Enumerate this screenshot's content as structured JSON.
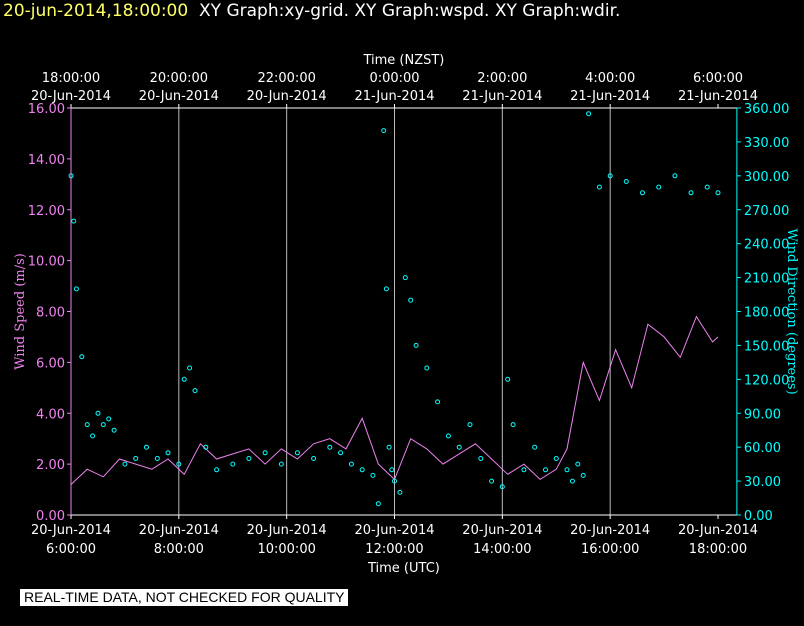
{
  "header": {
    "title_date": "20-jun-2014,18:00:00",
    "title_rest": "XY Graph:xy-grid.  XY Graph:wspd.  XY Graph:wdir."
  },
  "footer": {
    "note": "REAL-TIME DATA, NOT CHECKED FOR QUALITY"
  },
  "colors": {
    "speed": "#ee82ee",
    "direction": "#00ffff",
    "axis": "#ffffff",
    "background": "#000000"
  },
  "chart_data": {
    "type": "line",
    "xlabel_top": "Time (NZST)",
    "xlabel_bottom": "Time (UTC)",
    "ylabel_left": "Wind Speed (m/s)",
    "ylabel_right": "Wind Direction (degrees)",
    "x_range_utc_hours": [
      6.0,
      18.35
    ],
    "ylim_left": [
      0,
      16
    ],
    "ylim_right": [
      0,
      360
    ],
    "grid": "vertical",
    "left_ticks": [
      "0.00",
      "2.00",
      "4.00",
      "6.00",
      "8.00",
      "10.00",
      "12.00",
      "14.00",
      "16.00"
    ],
    "right_ticks": [
      "0.00",
      "30.00",
      "60.00",
      "90.00",
      "120.00",
      "150.00",
      "180.00",
      "210.00",
      "240.00",
      "270.00",
      "300.00",
      "330.00",
      "360.00"
    ],
    "top_ticks": [
      {
        "time": "18:00:00",
        "date": "20-Jun-2014"
      },
      {
        "time": "20:00:00",
        "date": "20-Jun-2014"
      },
      {
        "time": "22:00:00",
        "date": "20-Jun-2014"
      },
      {
        "time": "0:00:00",
        "date": "21-Jun-2014"
      },
      {
        "time": "2:00:00",
        "date": "21-Jun-2014"
      },
      {
        "time": "4:00:00",
        "date": "21-Jun-2014"
      },
      {
        "time": "6:00:00",
        "date": "21-Jun-2014"
      }
    ],
    "bottom_ticks": [
      {
        "time": "6:00:00",
        "date": "20-Jun-2014"
      },
      {
        "time": "8:00:00",
        "date": "20-Jun-2014"
      },
      {
        "time": "10:00:00",
        "date": "20-Jun-2014"
      },
      {
        "time": "12:00:00",
        "date": "20-Jun-2014"
      },
      {
        "time": "14:00:00",
        "date": "20-Jun-2014"
      },
      {
        "time": "16:00:00",
        "date": "20-Jun-2014"
      },
      {
        "time": "18:00:00",
        "date": "20-Jun-2014"
      }
    ],
    "series": [
      {
        "name": "Wind Speed",
        "style": "line",
        "x": [
          6.0,
          6.3,
          6.6,
          6.9,
          7.2,
          7.5,
          7.8,
          8.1,
          8.4,
          8.7,
          9.0,
          9.3,
          9.6,
          9.9,
          10.2,
          10.5,
          10.8,
          11.1,
          11.4,
          11.7,
          12.0,
          12.3,
          12.6,
          12.9,
          13.2,
          13.5,
          13.8,
          14.1,
          14.4,
          14.7,
          15.0,
          15.2,
          15.5,
          15.8,
          16.1,
          16.4,
          16.7,
          17.0,
          17.3,
          17.6,
          17.9,
          18.0
        ],
        "y": [
          1.2,
          1.8,
          1.5,
          2.2,
          2.0,
          1.8,
          2.2,
          1.6,
          2.8,
          2.2,
          2.4,
          2.6,
          2.0,
          2.6,
          2.2,
          2.8,
          3.0,
          2.6,
          3.8,
          2.0,
          1.4,
          3.0,
          2.6,
          2.0,
          2.4,
          2.8,
          2.2,
          1.6,
          2.0,
          1.4,
          1.8,
          2.6,
          6.0,
          4.5,
          6.5,
          5.0,
          7.5,
          7.0,
          6.2,
          7.8,
          6.8,
          7.0
        ]
      },
      {
        "name": "Wind Direction",
        "style": "points",
        "x": [
          6.0,
          6.05,
          6.1,
          6.2,
          6.3,
          6.4,
          6.5,
          6.6,
          6.7,
          6.8,
          7.0,
          7.2,
          7.4,
          7.6,
          7.8,
          8.0,
          8.1,
          8.2,
          8.3,
          8.5,
          8.7,
          9.0,
          9.3,
          9.6,
          9.9,
          10.2,
          10.5,
          10.8,
          11.0,
          11.2,
          11.4,
          11.6,
          11.7,
          11.8,
          11.85,
          11.9,
          11.95,
          12.0,
          12.1,
          12.2,
          12.3,
          12.4,
          12.6,
          12.8,
          13.0,
          13.2,
          13.4,
          13.6,
          13.8,
          14.0,
          14.1,
          14.2,
          14.4,
          14.6,
          14.8,
          15.0,
          15.2,
          15.3,
          15.4,
          15.5,
          15.6,
          15.8,
          16.0,
          16.3,
          16.6,
          16.9,
          17.2,
          17.5,
          17.8,
          18.0
        ],
        "y": [
          300,
          260,
          200,
          140,
          80,
          70,
          90,
          80,
          85,
          75,
          45,
          50,
          60,
          50,
          55,
          45,
          120,
          130,
          110,
          60,
          40,
          45,
          50,
          55,
          45,
          55,
          50,
          60,
          55,
          45,
          40,
          35,
          10,
          340,
          200,
          60,
          40,
          30,
          20,
          210,
          190,
          150,
          130,
          100,
          70,
          60,
          80,
          50,
          30,
          25,
          120,
          80,
          40,
          60,
          40,
          50,
          40,
          30,
          45,
          35,
          355,
          290,
          300,
          295,
          285,
          290,
          300,
          285,
          290,
          285
        ]
      }
    ]
  }
}
